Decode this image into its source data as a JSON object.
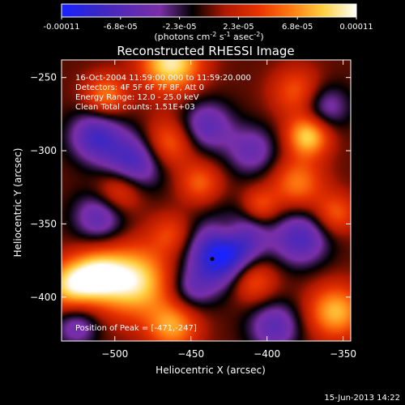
{
  "colorbar": {
    "ticks": [
      "-0.00011",
      "-6.8e-05",
      "-2.3e-05",
      "2.3e-05",
      "6.8e-05",
      "0.00011"
    ],
    "units_main": "(photons cm",
    "units_exp1": "-2",
    "units_mid": " s",
    "units_exp2": "-1",
    "units_tail": " asec",
    "units_exp3": "-2",
    "units_close": ")"
  },
  "info": {
    "line1": "16-Oct-2004 11:59:00.000 to 11:59:20.000",
    "line2": "Detectors: 4F 5F 6F 7F 8F, Att 0",
    "line3": "Energy Range: 12.0 - 25.0 keV",
    "line4": "Clean    Total counts: 1.51E+03",
    "peak": "Position of Peak = [-471,-247]"
  },
  "footer": {
    "timestamp": "15-Jun-2013 14:22"
  },
  "colors": {
    "background": "#000000",
    "text": "#ffffff"
  },
  "chart_data": {
    "type": "heatmap",
    "title": "Reconstructed RHESSI Image",
    "xlabel": "Heliocentric X (arcsec)",
    "ylabel": "Heliocentric Y (arcsec)",
    "xlim": [
      -535,
      -345
    ],
    "ylim": [
      -430,
      -238
    ],
    "xticks": [
      -500,
      -450,
      -400,
      -350
    ],
    "yticks": [
      -400,
      -350,
      -300,
      -250
    ],
    "zlim": [
      -0.00011,
      0.00011
    ],
    "colormap": [
      "#1a22ff",
      "#3526c8",
      "#5a2ab4",
      "#7a2fa8",
      "#000000",
      "#b01800",
      "#e83200",
      "#ff7a10",
      "#ffd040",
      "#ffffff"
    ],
    "marker": {
      "x": -436,
      "y": -374
    },
    "blobs": [
      {
        "x": -463,
        "y": -240,
        "amp": 0.0001,
        "s": 14
      },
      {
        "x": -506,
        "y": -262,
        "amp": 6e-05,
        "s": 10
      },
      {
        "x": -373,
        "y": -290,
        "amp": 9e-05,
        "s": 10
      },
      {
        "x": -380,
        "y": -260,
        "amp": 5e-05,
        "s": 12
      },
      {
        "x": -465,
        "y": -295,
        "amp": 6e-05,
        "s": 12
      },
      {
        "x": -497,
        "y": -327,
        "amp": 6e-05,
        "s": 11
      },
      {
        "x": -444,
        "y": -322,
        "amp": 5e-05,
        "s": 10
      },
      {
        "x": -463,
        "y": -357,
        "amp": 4e-05,
        "s": 10
      },
      {
        "x": -488,
        "y": -389,
        "amp": 0.0001,
        "s": 17
      },
      {
        "x": -530,
        "y": -392,
        "amp": 8e-05,
        "s": 12
      },
      {
        "x": -512,
        "y": -385,
        "amp": 8e-05,
        "s": 12
      },
      {
        "x": -380,
        "y": -322,
        "amp": 6e-05,
        "s": 12
      },
      {
        "x": -405,
        "y": -338,
        "amp": 5e-05,
        "s": 9
      },
      {
        "x": -355,
        "y": -343,
        "amp": 5e-05,
        "s": 10
      },
      {
        "x": -355,
        "y": -410,
        "amp": 8e-05,
        "s": 13
      },
      {
        "x": -410,
        "y": -388,
        "amp": 6e-05,
        "s": 11
      },
      {
        "x": -462,
        "y": -420,
        "amp": 7e-05,
        "s": 12
      },
      {
        "x": -424,
        "y": -355,
        "amp": 6e-05,
        "s": 9
      },
      {
        "x": -513,
        "y": -290,
        "amp": -7e-05,
        "s": 12
      },
      {
        "x": -488,
        "y": -308,
        "amp": -8e-05,
        "s": 14
      },
      {
        "x": -510,
        "y": -345,
        "amp": -6e-05,
        "s": 12
      },
      {
        "x": -440,
        "y": -283,
        "amp": -6e-05,
        "s": 12
      },
      {
        "x": -430,
        "y": -372,
        "amp": -0.00011,
        "s": 15
      },
      {
        "x": -418,
        "y": -355,
        "amp": -6e-05,
        "s": 12
      },
      {
        "x": -378,
        "y": -360,
        "amp": -7e-05,
        "s": 13
      },
      {
        "x": -362,
        "y": -270,
        "amp": -5e-05,
        "s": 11
      },
      {
        "x": -410,
        "y": -300,
        "amp": -5e-05,
        "s": 12
      },
      {
        "x": -525,
        "y": -420,
        "amp": -5e-05,
        "s": 10
      },
      {
        "x": -395,
        "y": -420,
        "amp": -6e-05,
        "s": 12
      },
      {
        "x": -450,
        "y": -395,
        "amp": -4e-05,
        "s": 10
      }
    ]
  }
}
